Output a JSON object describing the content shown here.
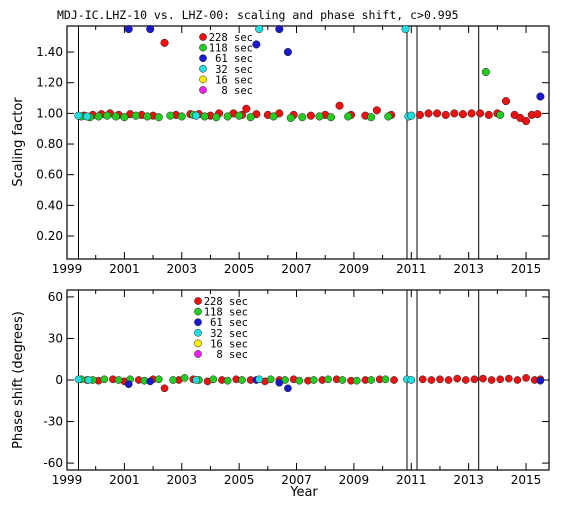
{
  "chart_data": [
    {
      "type": "scatter",
      "title": "MDJ-IC.LHZ-10 vs. LHZ-00: scaling and phase shift, c>0.995",
      "xlabel": "",
      "ylabel": "Scaling factor",
      "xlim": [
        1999,
        2015.8
      ],
      "ylim": [
        0.05,
        1.57
      ],
      "xticks": [
        1999,
        2001,
        2003,
        2005,
        2007,
        2009,
        2011,
        2013,
        2015
      ],
      "yticks": [
        0.2,
        0.4,
        0.6,
        0.8,
        1.0,
        1.2,
        1.4
      ],
      "ytick_labels": [
        "0.20",
        "0.40",
        "0.60",
        "0.80",
        "1.00",
        "1.20",
        "1.40"
      ],
      "vlines": [
        1999.4,
        2010.85,
        2011.2,
        2013.35
      ],
      "legend_position": "top-center",
      "series": [
        {
          "name": "228 sec",
          "color": "#ee1111",
          "points": [
            [
              1999.6,
              0.985
            ],
            [
              1999.9,
              0.99
            ],
            [
              2000.2,
              0.995
            ],
            [
              2000.5,
              1.0
            ],
            [
              2000.8,
              0.99
            ],
            [
              2001.2,
              0.995
            ],
            [
              2001.6,
              0.99
            ],
            [
              2002.0,
              0.985
            ],
            [
              2002.4,
              1.46
            ],
            [
              2002.8,
              0.99
            ],
            [
              2003.3,
              0.995
            ],
            [
              2003.6,
              0.995
            ],
            [
              2004.0,
              0.985
            ],
            [
              2004.3,
              1.0
            ],
            [
              2004.8,
              1.0
            ],
            [
              2005.1,
              0.99
            ],
            [
              2005.25,
              1.03
            ],
            [
              2005.6,
              0.995
            ],
            [
              2006.0,
              0.99
            ],
            [
              2006.4,
              1.0
            ],
            [
              2006.9,
              0.99
            ],
            [
              2007.5,
              0.985
            ],
            [
              2008.0,
              0.99
            ],
            [
              2008.5,
              1.05
            ],
            [
              2008.9,
              0.99
            ],
            [
              2009.4,
              0.985
            ],
            [
              2009.8,
              1.02
            ],
            [
              2010.3,
              0.99
            ],
            [
              2011.3,
              0.99
            ],
            [
              2011.6,
              1.0
            ],
            [
              2011.9,
              1.0
            ],
            [
              2012.2,
              0.99
            ],
            [
              2012.5,
              1.0
            ],
            [
              2012.8,
              0.995
            ],
            [
              2013.1,
              1.0
            ],
            [
              2013.4,
              1.0
            ],
            [
              2013.7,
              0.99
            ],
            [
              2014.0,
              1.0
            ],
            [
              2014.3,
              1.08
            ],
            [
              2014.6,
              0.99
            ],
            [
              2014.8,
              0.97
            ],
            [
              2015.0,
              0.95
            ],
            [
              2015.2,
              0.99
            ],
            [
              2015.4,
              0.995
            ]
          ]
        },
        {
          "name": "118 sec",
          "color": "#22cc22",
          "points": [
            [
              1999.5,
              0.98
            ],
            [
              1999.8,
              0.975
            ],
            [
              2000.1,
              0.98
            ],
            [
              2000.4,
              0.985
            ],
            [
              2000.7,
              0.98
            ],
            [
              2001.0,
              0.975
            ],
            [
              2001.4,
              0.985
            ],
            [
              2001.8,
              0.98
            ],
            [
              2002.2,
              0.975
            ],
            [
              2002.6,
              0.985
            ],
            [
              2003.0,
              0.98
            ],
            [
              2003.4,
              0.99
            ],
            [
              2003.8,
              0.98
            ],
            [
              2004.2,
              0.975
            ],
            [
              2004.6,
              0.98
            ],
            [
              2005.0,
              0.985
            ],
            [
              2005.4,
              0.975
            ],
            [
              2006.2,
              0.98
            ],
            [
              2006.8,
              0.97
            ],
            [
              2007.2,
              0.975
            ],
            [
              2007.8,
              0.98
            ],
            [
              2008.2,
              0.975
            ],
            [
              2008.8,
              0.98
            ],
            [
              2009.6,
              0.975
            ],
            [
              2010.2,
              0.98
            ],
            [
              2013.6,
              1.27
            ],
            [
              2014.1,
              0.99
            ]
          ]
        },
        {
          "name": "61 sec",
          "color": "#1a1acc",
          "points": [
            [
              2001.15,
              1.55
            ],
            [
              2001.9,
              1.55
            ],
            [
              2005.6,
              1.45
            ],
            [
              2006.4,
              1.55
            ],
            [
              2006.7,
              1.4
            ],
            [
              2015.5,
              1.11
            ]
          ]
        },
        {
          "name": "32 sec",
          "color": "#22dddd",
          "points": [
            [
              1999.4,
              0.985
            ],
            [
              1999.7,
              0.98
            ],
            [
              2003.5,
              0.985
            ],
            [
              2005.7,
              1.55
            ],
            [
              2010.8,
              1.55
            ],
            [
              2010.9,
              0.98
            ],
            [
              2011.0,
              0.985
            ]
          ]
        },
        {
          "name": "16 sec",
          "color": "#ffee00",
          "points": []
        },
        {
          "name": "8 sec",
          "color": "#ee22ee",
          "points": []
        }
      ]
    },
    {
      "type": "scatter",
      "xlabel": "Year",
      "ylabel": "Phase shift (degrees)",
      "xlim": [
        1999,
        2015.8
      ],
      "ylim": [
        -65,
        65
      ],
      "xticks": [
        1999,
        2001,
        2003,
        2005,
        2007,
        2009,
        2011,
        2013,
        2015
      ],
      "yticks": [
        -60,
        -30,
        0,
        30,
        60
      ],
      "ytick_labels": [
        "-60",
        "-30",
        "0",
        "30",
        "60"
      ],
      "vlines": [
        1999.4,
        2010.85,
        2011.2,
        2013.35
      ],
      "legend_position": "top-center",
      "series": [
        {
          "name": "228 sec",
          "color": "#ee1111",
          "points": [
            [
              1999.7,
              0
            ],
            [
              2000.1,
              -0.5
            ],
            [
              2000.6,
              0.5
            ],
            [
              2001.0,
              -1
            ],
            [
              2001.5,
              0
            ],
            [
              2002.0,
              0.5
            ],
            [
              2002.4,
              -6
            ],
            [
              2002.9,
              0
            ],
            [
              2003.4,
              0.5
            ],
            [
              2003.9,
              -1
            ],
            [
              2004.4,
              0
            ],
            [
              2004.9,
              0.5
            ],
            [
              2005.4,
              0
            ],
            [
              2005.9,
              -1
            ],
            [
              2006.4,
              0
            ],
            [
              2006.9,
              0.5
            ],
            [
              2007.4,
              -0.5
            ],
            [
              2007.9,
              0
            ],
            [
              2008.4,
              0.5
            ],
            [
              2008.9,
              -0.5
            ],
            [
              2009.4,
              0
            ],
            [
              2009.9,
              0.5
            ],
            [
              2010.4,
              0
            ],
            [
              2011.4,
              0.5
            ],
            [
              2011.7,
              0
            ],
            [
              2012.0,
              0.5
            ],
            [
              2012.3,
              0
            ],
            [
              2012.6,
              1
            ],
            [
              2012.9,
              0
            ],
            [
              2013.2,
              0.5
            ],
            [
              2013.5,
              1
            ],
            [
              2013.8,
              0
            ],
            [
              2014.1,
              0.5
            ],
            [
              2014.4,
              1
            ],
            [
              2014.7,
              0
            ],
            [
              2015.0,
              1.5
            ],
            [
              2015.3,
              0
            ],
            [
              2015.5,
              0.5
            ]
          ]
        },
        {
          "name": "118 sec",
          "color": "#22cc22",
          "points": [
            [
              1999.5,
              0.5
            ],
            [
              1999.9,
              0
            ],
            [
              2000.3,
              0.5
            ],
            [
              2000.8,
              0
            ],
            [
              2001.2,
              0.5
            ],
            [
              2001.7,
              -0.5
            ],
            [
              2002.2,
              0.5
            ],
            [
              2002.7,
              0
            ],
            [
              2003.1,
              1.5
            ],
            [
              2003.6,
              0
            ],
            [
              2004.1,
              0.5
            ],
            [
              2004.6,
              -0.5
            ],
            [
              2005.1,
              0
            ],
            [
              2006.1,
              0.5
            ],
            [
              2006.6,
              0
            ],
            [
              2007.1,
              -0.5
            ],
            [
              2007.6,
              0
            ],
            [
              2008.1,
              0.5
            ],
            [
              2008.6,
              0
            ],
            [
              2009.1,
              -0.5
            ],
            [
              2009.6,
              0
            ],
            [
              2010.1,
              0.5
            ]
          ]
        },
        {
          "name": "61 sec",
          "color": "#1a1acc",
          "points": [
            [
              2001.15,
              -3
            ],
            [
              2001.9,
              -1
            ],
            [
              2005.6,
              0
            ],
            [
              2006.4,
              -2
            ],
            [
              2006.7,
              -6
            ],
            [
              2015.5,
              -0.5
            ]
          ]
        },
        {
          "name": "32 sec",
          "color": "#22dddd",
          "points": [
            [
              1999.4,
              0.5
            ],
            [
              1999.75,
              0
            ],
            [
              2003.5,
              0
            ],
            [
              2005.7,
              0.5
            ],
            [
              2010.85,
              0.5
            ],
            [
              2011.0,
              0
            ]
          ]
        },
        {
          "name": "16 sec",
          "color": "#ffee00",
          "points": []
        },
        {
          "name": "8 sec",
          "color": "#ee22ee",
          "points": []
        }
      ]
    }
  ]
}
